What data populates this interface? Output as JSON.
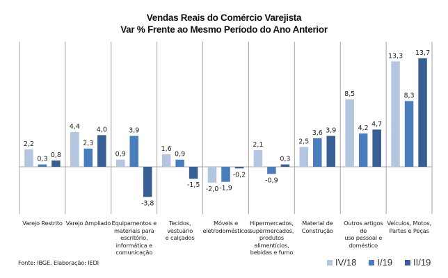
{
  "chart_data": {
    "type": "bar",
    "title": "Vendas Reais do Comércio Varejista",
    "subtitle": "Var % Frente ao Mesmo Período do Ano Anterior",
    "xlabel": "",
    "ylabel": "",
    "ylim": [
      -5.4,
      15.4
    ],
    "grid": false,
    "categories": [
      "Varejo Restrito",
      "Varejo Ampliado",
      "Equipamentos e materiais para escritório, informática e comunicação",
      "Tecidos, vestuário e calçados",
      "Móveis e eletrodomésticos",
      "Hipermercados, supermercados, produtos alimentícios, bebidas e fumo",
      "Material de Construção",
      "Outros artigos de uso pessoal e doméstico",
      "Veículos, Motos, Partes e Peças"
    ],
    "series": [
      {
        "name": "IV/18",
        "color": "#b3c5df",
        "values": [
          2.2,
          4.4,
          0.9,
          1.6,
          -2.0,
          2.1,
          2.5,
          8.5,
          13.3
        ],
        "labels": [
          "2,2",
          "4,4",
          "0,9",
          "1,6",
          "-2,0",
          "2,1",
          "2,5",
          "8,5",
          "13,3"
        ]
      },
      {
        "name": "I/19",
        "color": "#4a7dbb",
        "values": [
          0.3,
          2.3,
          3.9,
          0.9,
          -1.9,
          -0.9,
          3.6,
          4.2,
          8.3
        ],
        "labels": [
          "0,3",
          "2,3",
          "3,9",
          "0,9",
          "-1,9",
          "-0,9",
          "3,6",
          "4,2",
          "8,3"
        ]
      },
      {
        "name": "II/19",
        "color": "#385f93",
        "values": [
          0.8,
          4.0,
          -3.8,
          -1.5,
          -0.2,
          0.3,
          3.9,
          4.7,
          13.7
        ],
        "labels": [
          "0,8",
          "4,0",
          "-3,8",
          "-1,5",
          "-0,2",
          "0,3",
          "3,9",
          "4,7",
          "13,7"
        ]
      }
    ],
    "legend": "bottom-right"
  },
  "category_lines": [
    [
      "Varejo Restrito"
    ],
    [
      "Varejo Ampliado"
    ],
    [
      "Equipamentos e",
      "materiais para",
      "escritório,",
      "informática e",
      "comunicação"
    ],
    [
      "Tecidos, vestuário",
      "e calçados"
    ],
    [
      "Móveis e",
      "eletrodomésticos"
    ],
    [
      "Hipermercados,",
      "supermercados,",
      "produtos",
      "alimentícios,",
      "bebidas e fumo"
    ],
    [
      "Material de",
      "Construção"
    ],
    [
      "Outros artigos de",
      "uso pessoal e",
      "doméstico"
    ],
    [
      "Veículos, Motos,",
      "Partes e Peças"
    ]
  ],
  "source": "Fonte: IBGE. Elaboração: IEDI"
}
